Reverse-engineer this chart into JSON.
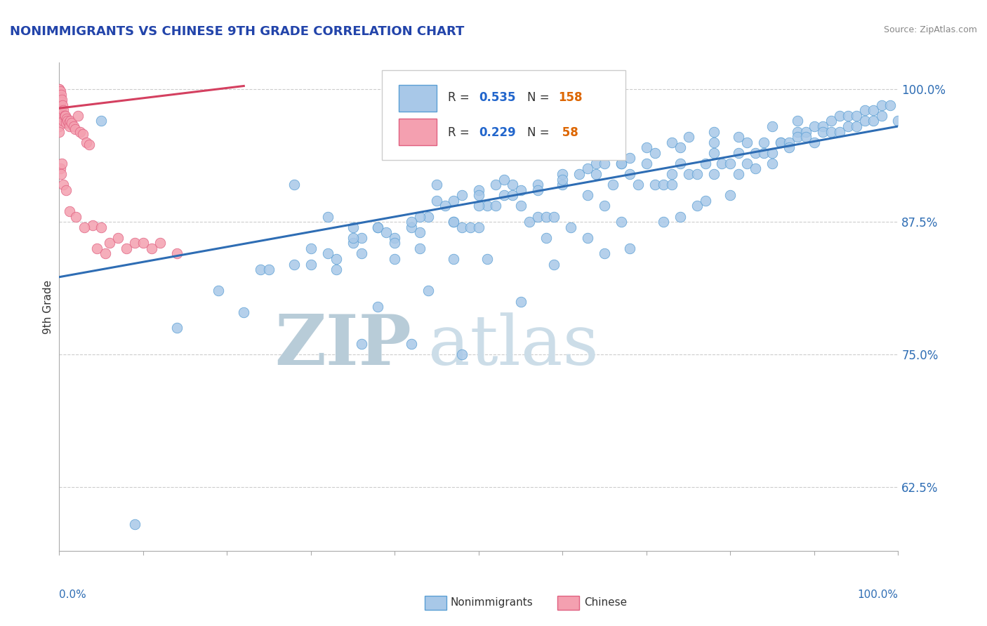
{
  "title": "NONIMMIGRANTS VS CHINESE 9TH GRADE CORRELATION CHART",
  "source": "Source: ZipAtlas.com",
  "ylabel": "9th Grade",
  "yticks": [
    0.625,
    0.75,
    0.875,
    1.0
  ],
  "ytick_labels": [
    "62.5%",
    "75.0%",
    "87.5%",
    "100.0%"
  ],
  "xlim": [
    0.0,
    1.0
  ],
  "ylim": [
    0.565,
    1.025
  ],
  "blue_color": "#a8c8e8",
  "pink_color": "#f4a0b0",
  "blue_edge_color": "#5a9fd4",
  "pink_edge_color": "#e06080",
  "blue_line_color": "#2e6db4",
  "pink_line_color": "#d44060",
  "title_color": "#2244aa",
  "source_color": "#888888",
  "legend_R_color": "#2266cc",
  "legend_N_color": "#dd6600",
  "watermark_zip_color": "#c0d0e0",
  "watermark_atlas_color": "#d0dde8",
  "blue_line_x": [
    0.0,
    1.0
  ],
  "blue_line_y": [
    0.823,
    0.965
  ],
  "pink_line_x": [
    0.0,
    0.22
  ],
  "pink_line_y": [
    0.982,
    1.003
  ],
  "blue_scatter_x": [
    0.05,
    0.09,
    0.14,
    0.19,
    0.22,
    0.24,
    0.28,
    0.3,
    0.32,
    0.33,
    0.35,
    0.36,
    0.36,
    0.38,
    0.38,
    0.4,
    0.42,
    0.42,
    0.43,
    0.44,
    0.44,
    0.45,
    0.47,
    0.47,
    0.48,
    0.48,
    0.48,
    0.49,
    0.5,
    0.51,
    0.51,
    0.52,
    0.53,
    0.54,
    0.55,
    0.55,
    0.56,
    0.57,
    0.58,
    0.58,
    0.59,
    0.59,
    0.6,
    0.61,
    0.62,
    0.63,
    0.63,
    0.64,
    0.65,
    0.65,
    0.66,
    0.67,
    0.67,
    0.68,
    0.68,
    0.69,
    0.7,
    0.71,
    0.72,
    0.72,
    0.73,
    0.73,
    0.74,
    0.74,
    0.75,
    0.76,
    0.76,
    0.77,
    0.77,
    0.78,
    0.78,
    0.79,
    0.8,
    0.8,
    0.81,
    0.81,
    0.82,
    0.82,
    0.83,
    0.83,
    0.84,
    0.84,
    0.85,
    0.85,
    0.86,
    0.86,
    0.87,
    0.87,
    0.88,
    0.88,
    0.89,
    0.89,
    0.9,
    0.9,
    0.91,
    0.91,
    0.92,
    0.92,
    0.93,
    0.93,
    0.94,
    0.94,
    0.95,
    0.95,
    0.96,
    0.96,
    0.97,
    0.97,
    0.98,
    0.98,
    0.99,
    1.0,
    0.35,
    0.38,
    0.4,
    0.43,
    0.45,
    0.47,
    0.5,
    0.52,
    0.55,
    0.57,
    0.6,
    0.63,
    0.65,
    0.68,
    0.7,
    0.73,
    0.75,
    0.78,
    0.3,
    0.33,
    0.36,
    0.4,
    0.43,
    0.47,
    0.5,
    0.54,
    0.57,
    0.6,
    0.64,
    0.67,
    0.71,
    0.74,
    0.78,
    0.81,
    0.85,
    0.88,
    0.25,
    0.28,
    0.32,
    0.35,
    0.39,
    0.42,
    0.46,
    0.5,
    0.53
  ],
  "blue_scatter_y": [
    0.97,
    0.59,
    0.775,
    0.81,
    0.79,
    0.83,
    0.91,
    0.85,
    0.88,
    0.83,
    0.87,
    0.86,
    0.76,
    0.87,
    0.795,
    0.84,
    0.87,
    0.76,
    0.85,
    0.88,
    0.81,
    0.91,
    0.84,
    0.875,
    0.87,
    0.9,
    0.75,
    0.87,
    0.87,
    0.89,
    0.84,
    0.89,
    0.9,
    0.91,
    0.89,
    0.8,
    0.875,
    0.88,
    0.88,
    0.86,
    0.88,
    0.835,
    0.91,
    0.87,
    0.92,
    0.9,
    0.86,
    0.93,
    0.89,
    0.845,
    0.91,
    0.93,
    0.875,
    0.92,
    0.85,
    0.91,
    0.93,
    0.91,
    0.91,
    0.875,
    0.92,
    0.91,
    0.93,
    0.88,
    0.92,
    0.92,
    0.89,
    0.93,
    0.895,
    0.94,
    0.92,
    0.93,
    0.93,
    0.9,
    0.94,
    0.92,
    0.95,
    0.93,
    0.94,
    0.925,
    0.95,
    0.94,
    0.94,
    0.93,
    0.95,
    0.95,
    0.95,
    0.945,
    0.96,
    0.955,
    0.96,
    0.955,
    0.965,
    0.95,
    0.965,
    0.96,
    0.97,
    0.96,
    0.975,
    0.96,
    0.975,
    0.965,
    0.975,
    0.965,
    0.98,
    0.97,
    0.98,
    0.97,
    0.985,
    0.975,
    0.985,
    0.97,
    0.855,
    0.87,
    0.86,
    0.88,
    0.895,
    0.895,
    0.905,
    0.91,
    0.905,
    0.91,
    0.92,
    0.925,
    0.93,
    0.935,
    0.945,
    0.95,
    0.955,
    0.96,
    0.835,
    0.84,
    0.845,
    0.855,
    0.865,
    0.875,
    0.89,
    0.9,
    0.905,
    0.915,
    0.92,
    0.93,
    0.94,
    0.945,
    0.95,
    0.955,
    0.965,
    0.97,
    0.83,
    0.835,
    0.845,
    0.86,
    0.865,
    0.875,
    0.89,
    0.9,
    0.915
  ],
  "pink_scatter_x": [
    0.0,
    0.0,
    0.0,
    0.0,
    0.0,
    0.0,
    0.0,
    0.0,
    0.0,
    0.0,
    0.001,
    0.001,
    0.001,
    0.001,
    0.002,
    0.002,
    0.002,
    0.003,
    0.003,
    0.004,
    0.005,
    0.005,
    0.006,
    0.007,
    0.008,
    0.009,
    0.01,
    0.011,
    0.012,
    0.013,
    0.015,
    0.017,
    0.019,
    0.022,
    0.025,
    0.028,
    0.032,
    0.036,
    0.04,
    0.045,
    0.05,
    0.055,
    0.06,
    0.07,
    0.08,
    0.09,
    0.1,
    0.11,
    0.12,
    0.14,
    0.001,
    0.002,
    0.003,
    0.005,
    0.008,
    0.012,
    0.02,
    0.03
  ],
  "pink_scatter_y": [
    1.0,
    1.0,
    0.995,
    0.99,
    0.985,
    0.98,
    0.975,
    0.97,
    0.965,
    0.96,
    0.998,
    0.992,
    0.985,
    0.978,
    0.995,
    0.988,
    0.98,
    0.99,
    0.975,
    0.985,
    0.98,
    0.97,
    0.975,
    0.975,
    0.968,
    0.972,
    0.97,
    0.968,
    0.965,
    0.97,
    0.968,
    0.965,
    0.962,
    0.975,
    0.96,
    0.958,
    0.95,
    0.948,
    0.872,
    0.85,
    0.87,
    0.845,
    0.855,
    0.86,
    0.85,
    0.855,
    0.855,
    0.85,
    0.855,
    0.845,
    0.925,
    0.92,
    0.93,
    0.91,
    0.905,
    0.885,
    0.88,
    0.87
  ]
}
